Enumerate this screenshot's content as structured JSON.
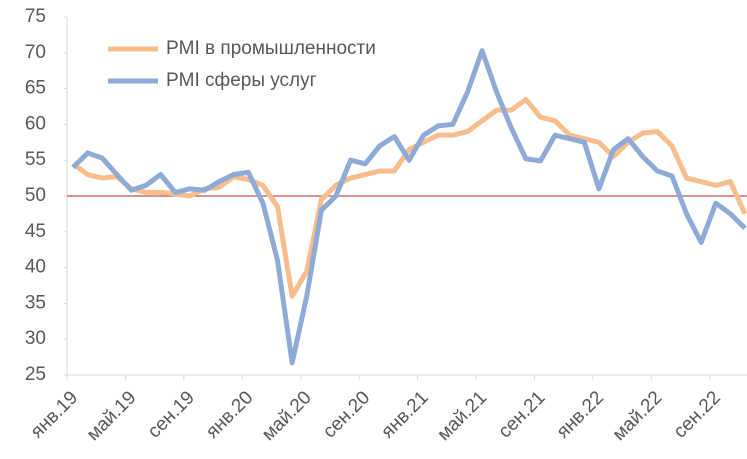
{
  "chart_data": {
    "type": "line",
    "categories": [
      "янв.19",
      null,
      null,
      null,
      "май.19",
      null,
      null,
      null,
      "сен.19",
      null,
      null,
      null,
      "янв.20",
      null,
      null,
      null,
      "май.20",
      null,
      null,
      null,
      "сен.20",
      null,
      null,
      null,
      "янв.21",
      null,
      null,
      null,
      "май.21",
      null,
      null,
      null,
      "сен.21",
      null,
      null,
      null,
      "янв.22",
      null,
      null,
      null,
      "май.22",
      null,
      null,
      null,
      "сен.22",
      null,
      null
    ],
    "series": [
      {
        "name": "PMI в промышленности",
        "color": "#f8bd8c",
        "values": [
          54.5,
          53.0,
          52.5,
          52.7,
          51.0,
          50.5,
          50.5,
          50.3,
          50.0,
          51.0,
          51.2,
          52.7,
          52.3,
          51.5,
          48.5,
          36.0,
          39.5,
          49.5,
          51.5,
          52.5,
          53.0,
          53.5,
          53.5,
          56.5,
          57.5,
          58.5,
          58.5,
          59.0,
          60.5,
          62.0,
          62.0,
          63.5,
          61.0,
          60.5,
          58.5,
          58.0,
          57.5,
          55.5,
          57.5,
          58.8,
          59.0,
          57.0,
          52.5,
          52.0,
          51.5,
          52.0,
          47.5
        ]
      },
      {
        "name": "PMI сферы услуг",
        "color": "#8eaad6",
        "values": [
          54.0,
          56.0,
          55.3,
          53.0,
          50.8,
          51.5,
          53.0,
          50.5,
          51.0,
          50.8,
          52.0,
          53.0,
          53.3,
          49.0,
          41.0,
          26.7,
          36.0,
          48.0,
          50.0,
          55.0,
          54.5,
          57.0,
          58.3,
          55.0,
          58.5,
          59.8,
          60.0,
          64.5,
          70.3,
          64.5,
          59.5,
          55.2,
          54.9,
          58.5,
          58.0,
          57.5,
          51.0,
          56.5,
          58.0,
          55.5,
          53.5,
          52.8,
          47.5,
          43.5,
          49.0,
          47.5,
          45.5
        ]
      }
    ],
    "ylim": [
      25,
      75
    ],
    "yticks": [
      25,
      30,
      35,
      40,
      45,
      50,
      55,
      60,
      65,
      70,
      75
    ],
    "reference_line": 50,
    "reference_color": "#c0504d",
    "legend": "upper left"
  }
}
